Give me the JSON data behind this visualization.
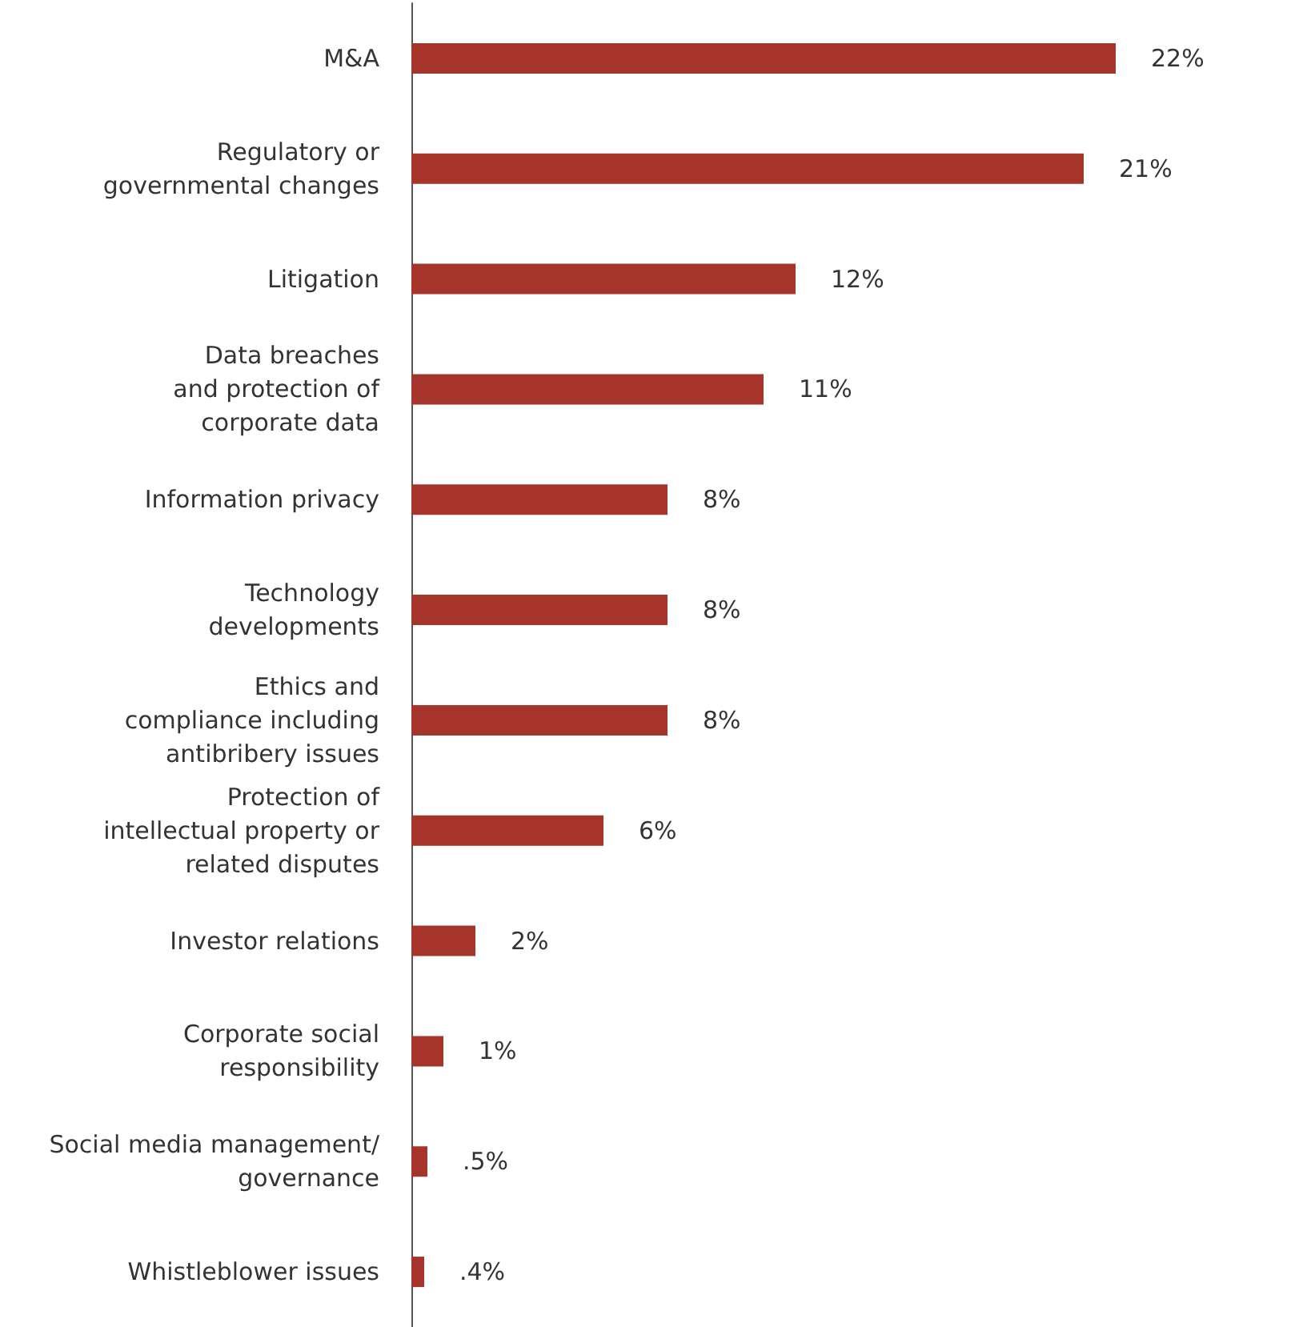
{
  "chart_data": {
    "type": "bar",
    "orientation": "horizontal",
    "categories": [
      "M&A",
      "Regulatory or\ngovernmental changes",
      "Litigation",
      "Data breaches\nand protection of\ncorporate data",
      "Information privacy",
      "Technology\ndevelopments",
      "Ethics and\ncompliance including\nantibribery issues",
      "Protection of\nintellectual property or\nrelated disputes",
      "Investor relations",
      "Corporate social\nresponsibility",
      "Social media management/\ngovernance",
      "Whistleblower issues"
    ],
    "values": [
      22,
      21,
      12,
      11,
      8,
      8,
      8,
      6,
      2,
      1,
      0.5,
      0.4
    ],
    "value_labels": [
      "22%",
      "21%",
      "12%",
      "11%",
      "8%",
      "8%",
      "8%",
      "6%",
      "2%",
      "1%",
      ".5%",
      ".4%"
    ],
    "color": "#a5352a"
  }
}
